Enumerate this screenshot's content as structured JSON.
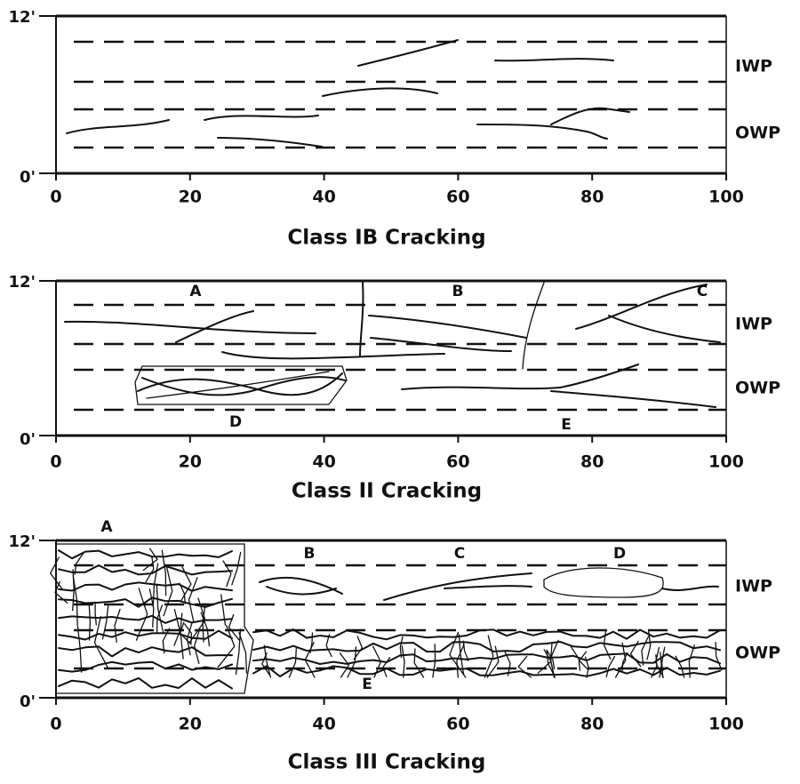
{
  "panels": [
    {
      "title": "Class IB Cracking",
      "y_top": "12'",
      "y_bottom": "0'",
      "xlim": [
        0,
        100
      ],
      "xticks": [
        0,
        20,
        40,
        60,
        80,
        100
      ],
      "lane_labels": [
        "IWP",
        "OWP"
      ]
    },
    {
      "title": "Class II Cracking",
      "y_top": "12'",
      "y_bottom": "0'",
      "xlim": [
        0,
        100
      ],
      "xticks": [
        0,
        20,
        40,
        60,
        80,
        100
      ],
      "lane_labels": [
        "IWP",
        "OWP"
      ],
      "crack_labels": [
        "A",
        "B",
        "C",
        "D",
        "E"
      ]
    },
    {
      "title": "Class III Cracking",
      "y_top": "12'",
      "y_bottom": "0'",
      "xlim": [
        0,
        100
      ],
      "xticks": [
        0,
        20,
        40,
        60,
        80,
        100
      ],
      "lane_labels": [
        "IWP",
        "OWP"
      ],
      "crack_labels": [
        "A",
        "B",
        "C",
        "D",
        "E"
      ]
    }
  ]
}
